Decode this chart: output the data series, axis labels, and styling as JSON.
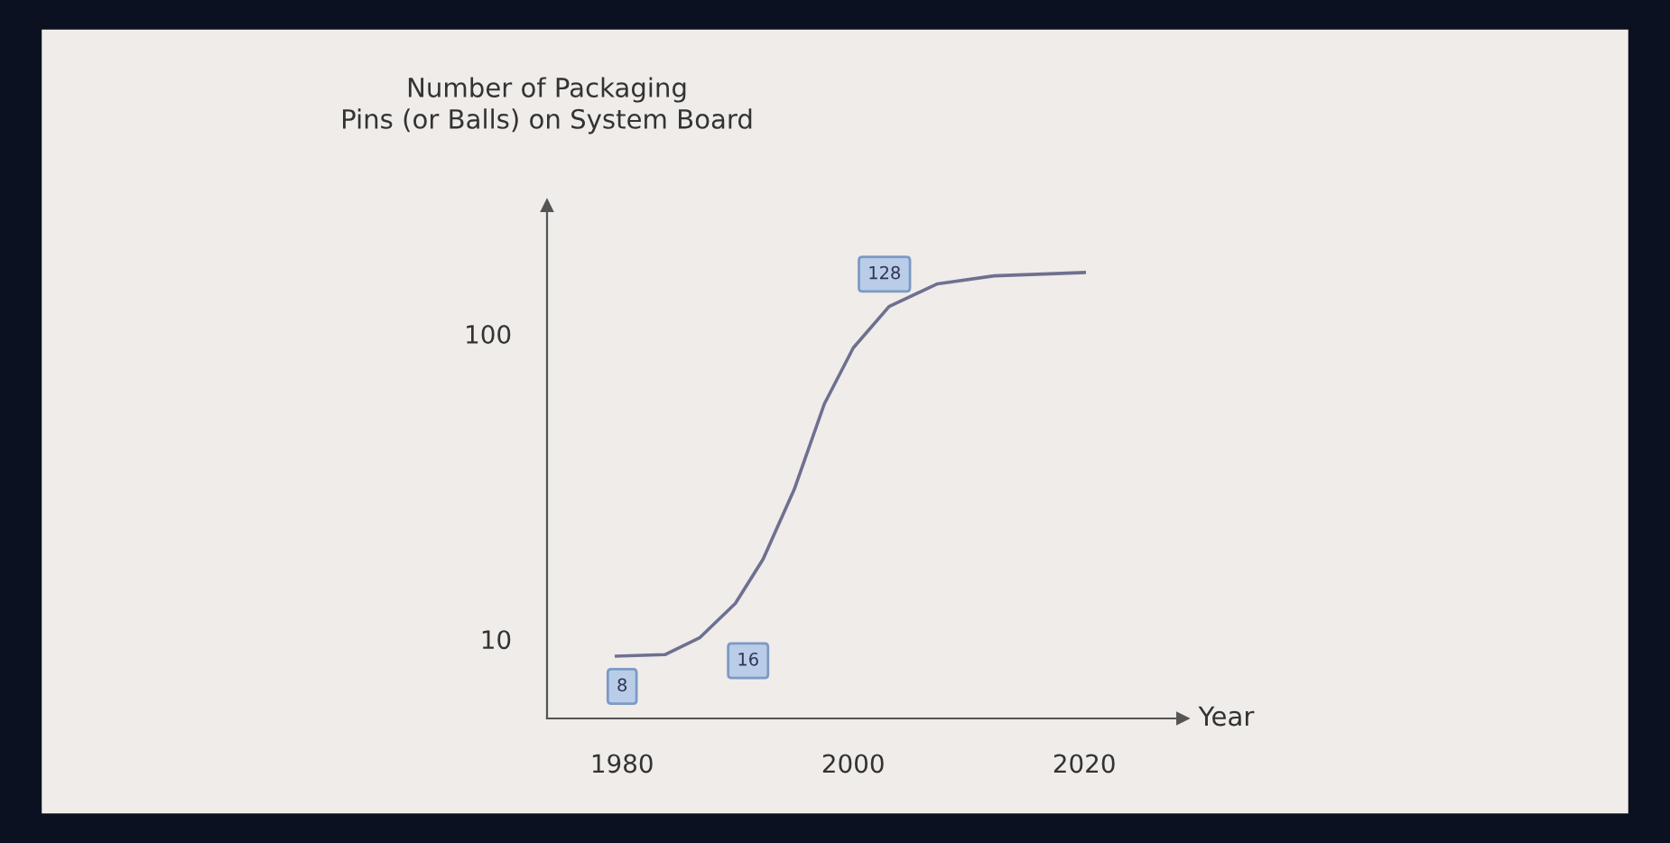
{
  "chart_data": {
    "type": "line",
    "ylabel": "Number of Packaging\nPins (or Balls) on System Board",
    "xlabel": "Year",
    "series": [
      {
        "color": "#6e7090",
        "x": [
          1979.5,
          1983.7,
          1986.7,
          1989.8,
          1992.2,
          1994.9,
          1997.5,
          2000,
          2003.1,
          2007.3,
          2012.2,
          2020
        ],
        "values": [
          8.8,
          8.9,
          10.1,
          13.1,
          18.3,
          31,
          59,
          90,
          123,
          146,
          155,
          159
        ]
      }
    ],
    "annotations": [
      {
        "text": "8",
        "x": 1980,
        "y": 7.0
      },
      {
        "text": "16",
        "x": 1990.9,
        "y": 8.5
      },
      {
        "text": "128",
        "x": 2002.7,
        "y": 157
      }
    ],
    "log": "y",
    "xlim": [
      1973.5,
      2028.5
    ],
    "ylim": [
      5.5,
      263
    ],
    "xticks": [
      1980,
      2000,
      2020
    ],
    "yticks": [
      10,
      100
    ],
    "grid": false,
    "legend": false,
    "marker": "none",
    "line_style": "solid"
  }
}
